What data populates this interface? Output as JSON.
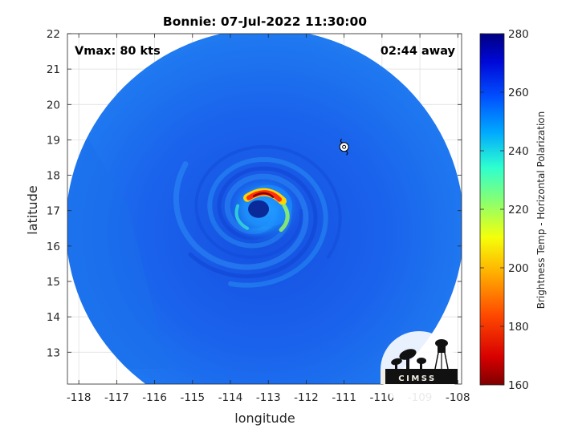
{
  "chart_data": {
    "type": "heatmap",
    "title": "Bonnie: 07-Jul-2022 11:30:00",
    "xlabel": "longitude",
    "ylabel": "latitude",
    "xlim": [
      -118.3,
      -107.9
    ],
    "ylim": [
      12.1,
      22.0
    ],
    "xticks": [
      -118,
      -117,
      -116,
      -115,
      -114,
      -113,
      -112,
      -111,
      -110,
      -109,
      -108
    ],
    "yticks": [
      13,
      14,
      15,
      16,
      17,
      18,
      19,
      20,
      21,
      22
    ],
    "grid": true,
    "annotations": {
      "vmax": "Vmax: 80 kts",
      "time_away": "02:44 away"
    },
    "storm_center": {
      "lon": -113.3,
      "lat": 17.0
    },
    "storm_symbol_position": {
      "lon": -111.0,
      "lat": 18.8
    },
    "swath_center": {
      "lon": -113.2,
      "lat": 16.55
    },
    "colorbar": {
      "label": "Brightness Temp - Horizontal Polarization",
      "min": 160,
      "max": 280,
      "ticks": [
        160,
        180,
        200,
        220,
        240,
        260,
        280
      ],
      "colormap": [
        "#7f0000",
        "#d80000",
        "#ff4a00",
        "#ffb000",
        "#f5ff0a",
        "#8cff6e",
        "#2dffd0",
        "#00a8ff",
        "#0050ff",
        "#0008d8",
        "#000080"
      ]
    },
    "colors": {
      "background_field": "#1a6bea",
      "eyewall_hot": "#ff3010",
      "eye": "#0a2a9a"
    }
  },
  "logo": {
    "text": "CIMSS"
  }
}
